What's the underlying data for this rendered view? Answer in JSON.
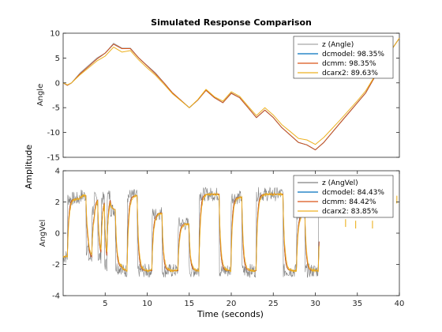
{
  "figure": {
    "title": "Simulated Response Comparison",
    "ylabel": "Amplitude",
    "xlabel": "Time (seconds)"
  },
  "chart_data": [
    {
      "type": "line",
      "title": "Simulated Response Comparison",
      "ylabel": "Angle",
      "xlabel": "",
      "xlim": [
        0,
        40
      ],
      "ylim": [
        -15,
        10
      ],
      "xticks": [],
      "yticks": [
        -15,
        -10,
        -5,
        0,
        5,
        10
      ],
      "legend_position": "top-right",
      "grid": false,
      "series": [
        {
          "name": "z (Angle)",
          "color": "#a8a8a8",
          "x": [
            0,
            0.5,
            1,
            2,
            3,
            4,
            5,
            6,
            7,
            8,
            9,
            10,
            11,
            12,
            13,
            14,
            15,
            16,
            17,
            18,
            19,
            20,
            21,
            22,
            23,
            24,
            25,
            26,
            27,
            28,
            29,
            30,
            31,
            32,
            33,
            34,
            35,
            36,
            37,
            38,
            39,
            40
          ],
          "y": [
            0,
            -0.5,
            0,
            2,
            3.5,
            5,
            6,
            8,
            7,
            7,
            5,
            3.5,
            2,
            0,
            -2,
            -3.5,
            -5,
            -3.5,
            -1.5,
            -3,
            -4,
            -2,
            -3,
            -5,
            -7,
            -5.5,
            -7,
            -9,
            -10.5,
            -12,
            -12.5,
            -13.5,
            -12,
            -10,
            -8,
            -6,
            -4,
            -2,
            1,
            3.5,
            6.5,
            9
          ]
        },
        {
          "name": "dcmodel: 98.35%",
          "color": "#0072bd",
          "x": [
            0,
            0.5,
            1,
            2,
            3,
            4,
            5,
            6,
            7,
            8,
            9,
            10,
            11,
            12,
            13,
            14,
            15,
            16,
            17,
            18,
            19,
            20,
            21,
            22,
            23,
            24,
            25,
            26,
            27,
            28,
            29,
            30,
            31,
            32,
            33,
            34,
            35,
            36,
            37,
            38,
            39,
            40
          ],
          "y": [
            0,
            -0.5,
            0,
            1.8,
            3.3,
            4.8,
            6,
            7.8,
            6.9,
            6.9,
            5,
            3.4,
            1.8,
            0,
            -2,
            -3.5,
            -5,
            -3.5,
            -1.5,
            -3,
            -4,
            -2.1,
            -3,
            -5,
            -7,
            -5.5,
            -7,
            -9,
            -10.5,
            -12,
            -12.5,
            -13.5,
            -12,
            -10,
            -8,
            -6,
            -4,
            -2,
            1,
            3.5,
            6.5,
            9
          ]
        },
        {
          "name": "dcmm: 98.35%",
          "color": "#d95319",
          "x": [
            0,
            0.5,
            1,
            2,
            3,
            4,
            5,
            6,
            7,
            8,
            9,
            10,
            11,
            12,
            13,
            14,
            15,
            16,
            17,
            18,
            19,
            20,
            21,
            22,
            23,
            24,
            25,
            26,
            27,
            28,
            29,
            30,
            31,
            32,
            33,
            34,
            35,
            36,
            37,
            38,
            39,
            40
          ],
          "y": [
            0,
            -0.5,
            0,
            1.8,
            3.3,
            4.8,
            6,
            7.8,
            6.9,
            6.9,
            5,
            3.4,
            1.8,
            0,
            -2,
            -3.5,
            -5,
            -3.5,
            -1.5,
            -3,
            -4,
            -2.1,
            -3,
            -5,
            -7,
            -5.5,
            -7,
            -9,
            -10.5,
            -12,
            -12.5,
            -13.5,
            -12,
            -10,
            -8,
            -6,
            -4,
            -2,
            1,
            3.5,
            6.5,
            9
          ]
        },
        {
          "name": "dcarx2: 89.63%",
          "color": "#edb120",
          "x": [
            0,
            0.5,
            1,
            2,
            3,
            4,
            5,
            6,
            7,
            8,
            9,
            10,
            11,
            12,
            13,
            14,
            15,
            16,
            17,
            18,
            19,
            20,
            21,
            22,
            23,
            24,
            25,
            26,
            27,
            28,
            29,
            30,
            31,
            32,
            33,
            34,
            35,
            36,
            37,
            38,
            39,
            40
          ],
          "y": [
            0,
            -0.4,
            0,
            1.6,
            3,
            4.4,
            5.4,
            7.2,
            6.2,
            6.5,
            4.6,
            3,
            1.5,
            -0.3,
            -2.2,
            -3.6,
            -5,
            -3.4,
            -1.3,
            -2.8,
            -3.7,
            -1.8,
            -2.7,
            -4.7,
            -6.6,
            -5,
            -6.5,
            -8.4,
            -9.8,
            -11.2,
            -11.5,
            -12.4,
            -11,
            -9.2,
            -7.4,
            -5.5,
            -3.6,
            -1.6,
            1.2,
            3.6,
            6.5,
            9
          ]
        }
      ]
    },
    {
      "type": "line",
      "title": "",
      "ylabel": "AngVel",
      "xlabel": "Time (seconds)",
      "xlim": [
        0,
        40
      ],
      "ylim": [
        -4,
        4
      ],
      "xticks": [
        5,
        10,
        15,
        20,
        25,
        30,
        35,
        40
      ],
      "yticks": [
        -4,
        -2,
        0,
        2,
        4
      ],
      "legend_position": "top-right",
      "grid": false,
      "series": [
        {
          "name": "z (AngVel)",
          "color": "#808080"
        },
        {
          "name": "dcmodel: 84.43%",
          "color": "#0072bd"
        },
        {
          "name": "dcmm: 84.42%",
          "color": "#d95319"
        },
        {
          "name": "dcarx2: 83.85%",
          "color": "#edb120"
        }
      ],
      "levels": {
        "high": 2.5,
        "low": -2.4
      },
      "segments": [
        [
          0,
          -1.5
        ],
        [
          0.5,
          2.2
        ],
        [
          2.0,
          2.4
        ],
        [
          2.7,
          -1
        ],
        [
          3.0,
          -1.6
        ],
        [
          3.4,
          1.5
        ],
        [
          3.7,
          2.2
        ],
        [
          4.1,
          -1.5
        ],
        [
          4.5,
          2.2
        ],
        [
          4.9,
          -2
        ],
        [
          5.2,
          2.4
        ],
        [
          5.6,
          1.5
        ],
        [
          6.2,
          -2.2
        ],
        [
          7.0,
          -2.4
        ],
        [
          7.6,
          2.4
        ],
        [
          8.3,
          2.4
        ],
        [
          8.8,
          -2.4
        ],
        [
          10.2,
          -2.4
        ],
        [
          10.6,
          1.2
        ],
        [
          11.2,
          1.3
        ],
        [
          11.8,
          -2.4
        ],
        [
          13.0,
          -2.4
        ],
        [
          13.7,
          0.6
        ],
        [
          14.3,
          0.6
        ],
        [
          15.0,
          -2.4
        ],
        [
          15.6,
          -2.4
        ],
        [
          16.2,
          2.5
        ],
        [
          17.8,
          2.5
        ],
        [
          18.6,
          -2.4
        ],
        [
          19.5,
          -2.4
        ],
        [
          20.0,
          2.3
        ],
        [
          20.8,
          2.3
        ],
        [
          21.3,
          -2.4
        ],
        [
          22.3,
          -2.4
        ],
        [
          23.0,
          2.5
        ],
        [
          25.6,
          2.5
        ],
        [
          26.2,
          -2.4
        ],
        [
          27.2,
          -2.4
        ],
        [
          27.8,
          1.2
        ],
        [
          28.3,
          1.3
        ],
        [
          28.8,
          -2.4
        ],
        [
          29.8,
          -2.4
        ],
        [
          30.4,
          1.5
        ]
      ]
    }
  ]
}
